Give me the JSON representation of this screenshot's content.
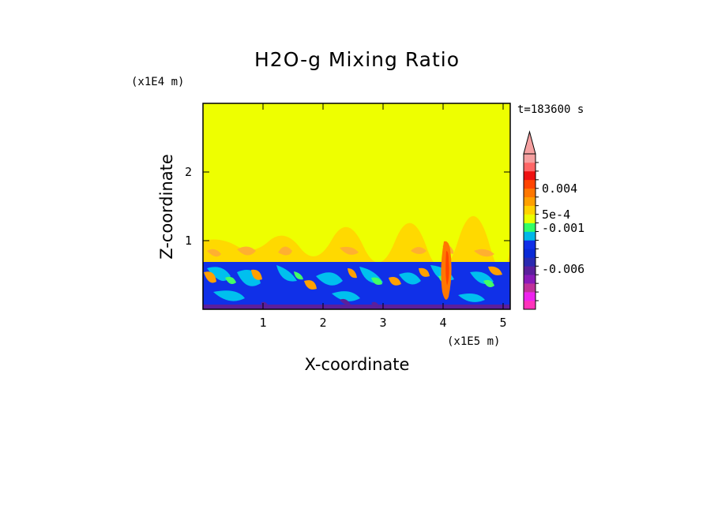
{
  "chart_data": {
    "type": "heatmap",
    "title": "H2O-g Mixing Ratio",
    "xlabel": "X-coordinate",
    "ylabel": "Z-coordinate",
    "x_scale_note": "(x1E5 m)",
    "y_scale_note": "(x1E4 m)",
    "time_label": "t=183600 s",
    "xlim": [
      0,
      5.12
    ],
    "ylim": [
      0,
      3.0
    ],
    "x_ticks": [
      "1",
      "2",
      "3",
      "4",
      "5"
    ],
    "y_ticks": [
      "1",
      "2"
    ],
    "colorbar": {
      "labels": [
        "0.004",
        "5e-4",
        "-0.001",
        "-0.006"
      ],
      "colors": [
        "#ff33bb",
        "#ee22ee",
        "#c0309a",
        "#8a1ab8",
        "#5b1f9c",
        "#2a2ab0",
        "#0a2ad6",
        "#1030e8",
        "#00b8e8",
        "#33ff66",
        "#eaff00",
        "#ffd200",
        "#ffa000",
        "#ff7700",
        "#ff4400",
        "#ee1111",
        "#ff6666",
        "#f5a0a0"
      ],
      "extend_max": true
    },
    "background_color": "#eeff00",
    "fields": [
      {
        "name": "upper-layer",
        "z_range": [
          1.05,
          3.0
        ],
        "color": "#eeff00"
      },
      {
        "name": "transition-layer",
        "z_range": [
          0.72,
          1.05
        ],
        "color": "#ffd200",
        "note": "light orange wisps"
      },
      {
        "name": "lower-mixed-layer",
        "z_range": [
          0.0,
          0.72
        ],
        "colors": [
          "#1030e8",
          "#00b8e8",
          "#33ff66",
          "#ffa000",
          "#ff7700",
          "#5b1f9c"
        ]
      }
    ]
  }
}
